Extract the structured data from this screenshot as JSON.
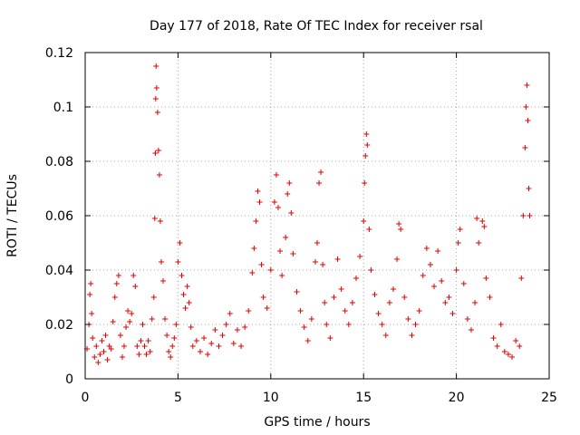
{
  "chart_data": {
    "type": "scatter",
    "title": "Day 177 of 2018, Rate Of TEC Index for receiver rsal",
    "xlabel": "GPS time / hours",
    "ylabel": "ROTI / TECUs",
    "xlim": [
      0,
      25
    ],
    "ylim": [
      0,
      0.12
    ],
    "xticks": [
      0,
      5,
      10,
      15,
      20,
      25
    ],
    "yticks": [
      0,
      0.02,
      0.04,
      0.06,
      0.08,
      0.1,
      0.12
    ],
    "xtick_labels": [
      "0",
      "5",
      "10",
      "15",
      "20",
      "25"
    ],
    "ytick_labels": [
      "0",
      "0.02",
      "0.04",
      "0.06",
      "0.08",
      "0.1",
      "0.12"
    ],
    "grid": true,
    "marker": "+",
    "colors": {
      "series": "#e00000",
      "axis": "#000000",
      "grid": "#a0a0a0"
    },
    "series": [
      {
        "name": "ROTI",
        "color": "#e00000",
        "points": [
          [
            0.1,
            0.011
          ],
          [
            0.2,
            0.02
          ],
          [
            0.25,
            0.031
          ],
          [
            0.3,
            0.035
          ],
          [
            0.35,
            0.024
          ],
          [
            0.4,
            0.015
          ],
          [
            0.5,
            0.008
          ],
          [
            0.6,
            0.012
          ],
          [
            0.7,
            0.006
          ],
          [
            0.8,
            0.009
          ],
          [
            0.9,
            0.014
          ],
          [
            1.0,
            0.01
          ],
          [
            1.1,
            0.016
          ],
          [
            1.2,
            0.007
          ],
          [
            1.3,
            0.012
          ],
          [
            1.4,
            0.011
          ],
          [
            1.5,
            0.021
          ],
          [
            1.6,
            0.03
          ],
          [
            1.7,
            0.035
          ],
          [
            1.8,
            0.038
          ],
          [
            1.9,
            0.016
          ],
          [
            2.0,
            0.008
          ],
          [
            2.1,
            0.012
          ],
          [
            2.2,
            0.019
          ],
          [
            2.3,
            0.025
          ],
          [
            2.4,
            0.021
          ],
          [
            2.5,
            0.024
          ],
          [
            2.6,
            0.038
          ],
          [
            2.7,
            0.034
          ],
          [
            2.8,
            0.012
          ],
          [
            2.9,
            0.009
          ],
          [
            3.0,
            0.014
          ],
          [
            3.1,
            0.02
          ],
          [
            3.2,
            0.012
          ],
          [
            3.3,
            0.009
          ],
          [
            3.4,
            0.014
          ],
          [
            3.5,
            0.01
          ],
          [
            3.6,
            0.022
          ],
          [
            3.7,
            0.03
          ],
          [
            3.75,
            0.059
          ],
          [
            3.78,
            0.083
          ],
          [
            3.8,
            0.103
          ],
          [
            3.82,
            0.115
          ],
          [
            3.85,
            0.107
          ],
          [
            3.9,
            0.098
          ],
          [
            3.95,
            0.084
          ],
          [
            4.0,
            0.075
          ],
          [
            4.05,
            0.058
          ],
          [
            4.1,
            0.043
          ],
          [
            4.2,
            0.036
          ],
          [
            4.3,
            0.022
          ],
          [
            4.4,
            0.016
          ],
          [
            4.5,
            0.01
          ],
          [
            4.6,
            0.008
          ],
          [
            4.7,
            0.012
          ],
          [
            4.8,
            0.015
          ],
          [
            4.9,
            0.02
          ],
          [
            5.0,
            0.043
          ],
          [
            5.1,
            0.05
          ],
          [
            5.2,
            0.038
          ],
          [
            5.3,
            0.031
          ],
          [
            5.4,
            0.026
          ],
          [
            5.5,
            0.034
          ],
          [
            5.6,
            0.028
          ],
          [
            5.7,
            0.019
          ],
          [
            5.8,
            0.012
          ],
          [
            6.0,
            0.014
          ],
          [
            6.2,
            0.01
          ],
          [
            6.4,
            0.015
          ],
          [
            6.6,
            0.009
          ],
          [
            6.8,
            0.013
          ],
          [
            7.0,
            0.018
          ],
          [
            7.2,
            0.012
          ],
          [
            7.4,
            0.016
          ],
          [
            7.6,
            0.02
          ],
          [
            7.8,
            0.024
          ],
          [
            8.0,
            0.013
          ],
          [
            8.2,
            0.018
          ],
          [
            8.4,
            0.012
          ],
          [
            8.6,
            0.019
          ],
          [
            8.8,
            0.025
          ],
          [
            9.0,
            0.039
          ],
          [
            9.1,
            0.048
          ],
          [
            9.2,
            0.058
          ],
          [
            9.3,
            0.069
          ],
          [
            9.4,
            0.065
          ],
          [
            9.5,
            0.042
          ],
          [
            9.6,
            0.03
          ],
          [
            9.8,
            0.026
          ],
          [
            10.0,
            0.04
          ],
          [
            10.2,
            0.065
          ],
          [
            10.3,
            0.075
          ],
          [
            10.4,
            0.063
          ],
          [
            10.5,
            0.047
          ],
          [
            10.6,
            0.038
          ],
          [
            10.8,
            0.052
          ],
          [
            10.9,
            0.068
          ],
          [
            11.0,
            0.072
          ],
          [
            11.1,
            0.061
          ],
          [
            11.2,
            0.046
          ],
          [
            11.4,
            0.032
          ],
          [
            11.6,
            0.025
          ],
          [
            11.8,
            0.019
          ],
          [
            12.0,
            0.014
          ],
          [
            12.2,
            0.022
          ],
          [
            12.4,
            0.043
          ],
          [
            12.5,
            0.05
          ],
          [
            12.6,
            0.072
          ],
          [
            12.7,
            0.076
          ],
          [
            12.8,
            0.042
          ],
          [
            12.9,
            0.028
          ],
          [
            13.0,
            0.02
          ],
          [
            13.2,
            0.015
          ],
          [
            13.4,
            0.03
          ],
          [
            13.6,
            0.044
          ],
          [
            13.8,
            0.033
          ],
          [
            14.0,
            0.025
          ],
          [
            14.2,
            0.02
          ],
          [
            14.4,
            0.028
          ],
          [
            14.6,
            0.037
          ],
          [
            14.8,
            0.045
          ],
          [
            15.0,
            0.058
          ],
          [
            15.05,
            0.072
          ],
          [
            15.1,
            0.082
          ],
          [
            15.15,
            0.09
          ],
          [
            15.2,
            0.086
          ],
          [
            15.3,
            0.055
          ],
          [
            15.4,
            0.04
          ],
          [
            15.6,
            0.031
          ],
          [
            15.8,
            0.024
          ],
          [
            16.0,
            0.02
          ],
          [
            16.2,
            0.016
          ],
          [
            16.4,
            0.028
          ],
          [
            16.6,
            0.033
          ],
          [
            16.8,
            0.044
          ],
          [
            16.9,
            0.057
          ],
          [
            17.0,
            0.055
          ],
          [
            17.2,
            0.03
          ],
          [
            17.4,
            0.022
          ],
          [
            17.6,
            0.016
          ],
          [
            17.8,
            0.02
          ],
          [
            18.0,
            0.025
          ],
          [
            18.2,
            0.038
          ],
          [
            18.4,
            0.048
          ],
          [
            18.6,
            0.042
          ],
          [
            18.8,
            0.034
          ],
          [
            19.0,
            0.047
          ],
          [
            19.2,
            0.036
          ],
          [
            19.4,
            0.028
          ],
          [
            19.6,
            0.03
          ],
          [
            19.8,
            0.024
          ],
          [
            20.0,
            0.04
          ],
          [
            20.1,
            0.05
          ],
          [
            20.2,
            0.055
          ],
          [
            20.4,
            0.035
          ],
          [
            20.6,
            0.022
          ],
          [
            20.8,
            0.018
          ],
          [
            21.0,
            0.028
          ],
          [
            21.1,
            0.059
          ],
          [
            21.2,
            0.05
          ],
          [
            21.4,
            0.058
          ],
          [
            21.5,
            0.056
          ],
          [
            21.6,
            0.037
          ],
          [
            21.8,
            0.03
          ],
          [
            22.0,
            0.015
          ],
          [
            22.2,
            0.012
          ],
          [
            22.4,
            0.02
          ],
          [
            22.6,
            0.01
          ],
          [
            22.8,
            0.009
          ],
          [
            23.0,
            0.008
          ],
          [
            23.2,
            0.014
          ],
          [
            23.4,
            0.012
          ],
          [
            23.5,
            0.037
          ],
          [
            23.6,
            0.06
          ],
          [
            23.7,
            0.085
          ],
          [
            23.75,
            0.1
          ],
          [
            23.8,
            0.108
          ],
          [
            23.85,
            0.095
          ],
          [
            23.9,
            0.07
          ],
          [
            23.95,
            0.06
          ]
        ]
      }
    ]
  }
}
